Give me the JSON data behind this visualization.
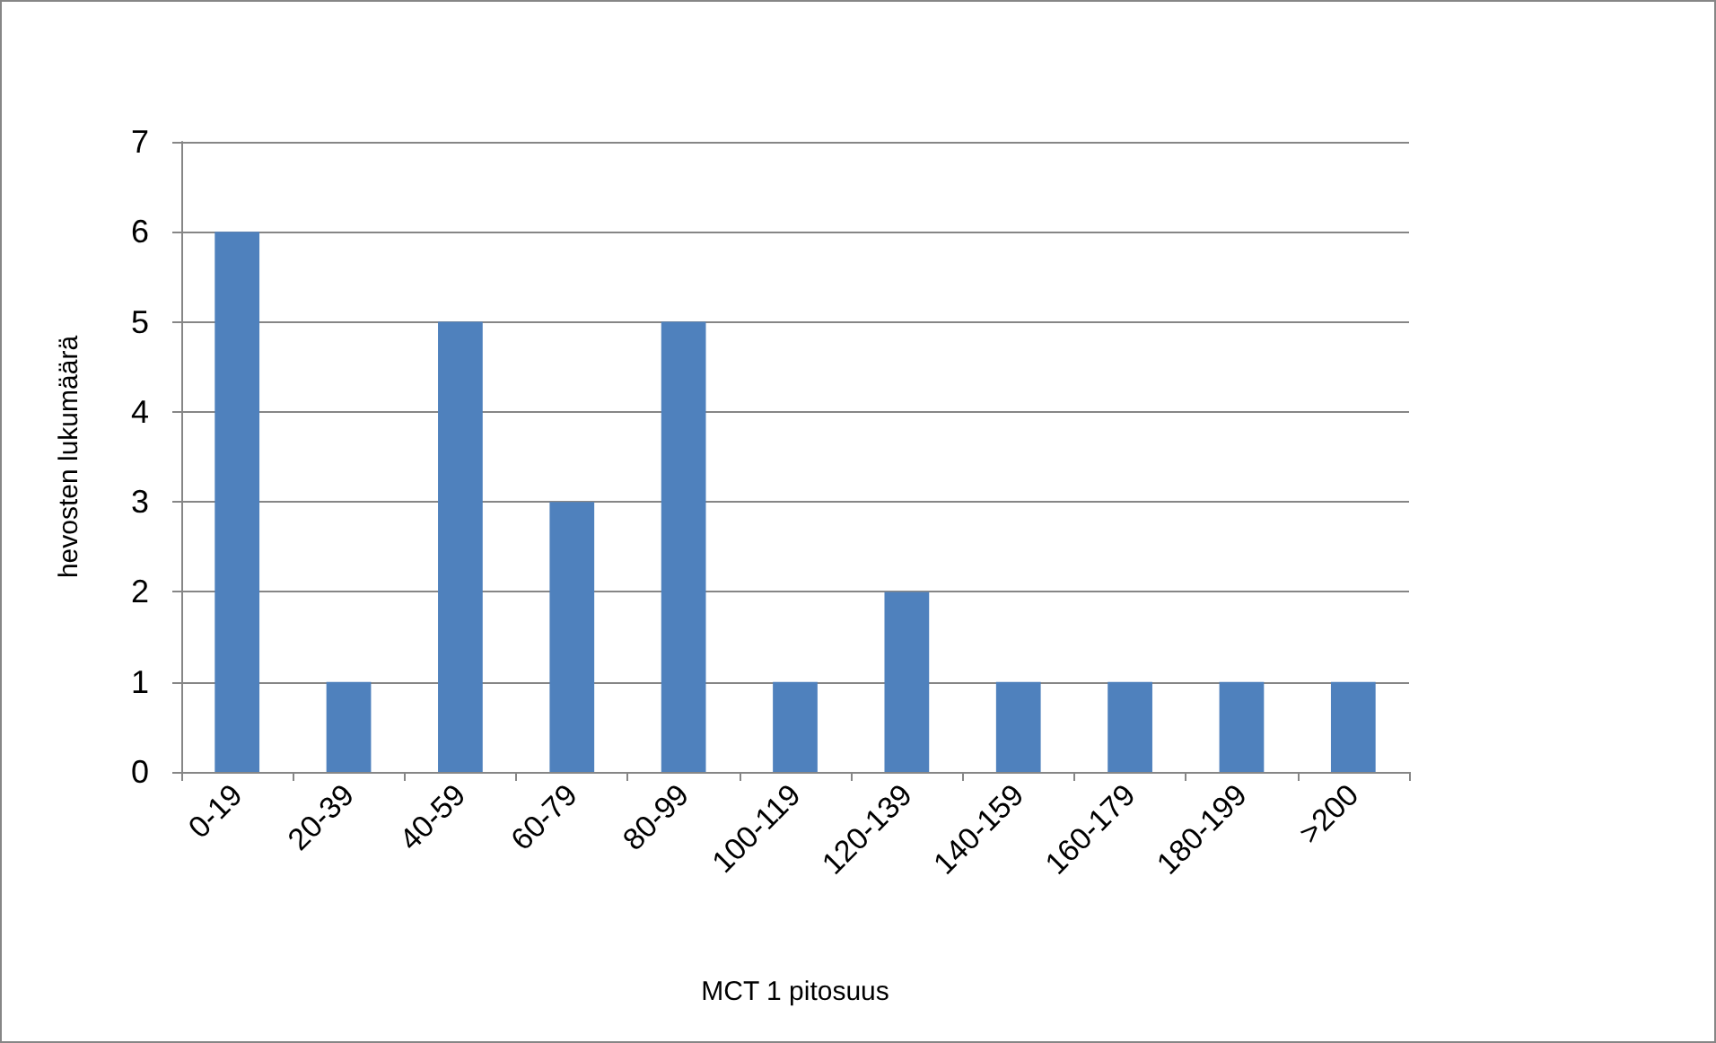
{
  "chart_data": {
    "type": "bar",
    "xlabel": "MCT 1 pitosuus",
    "ylabel": "hevosten lukumäärä",
    "categories": [
      "0-19",
      "20-39",
      "40-59",
      "60-79",
      "80-99",
      "100-119",
      "120-139",
      "140-159",
      "160-179",
      "180-199",
      ">200"
    ],
    "values": [
      6,
      1,
      5,
      3,
      5,
      1,
      2,
      1,
      1,
      1,
      1
    ],
    "color": "#4f81bd",
    "ylim": [
      0,
      7
    ],
    "yticks": [
      0,
      1,
      2,
      3,
      4,
      5,
      6,
      7
    ],
    "grid": "y"
  }
}
